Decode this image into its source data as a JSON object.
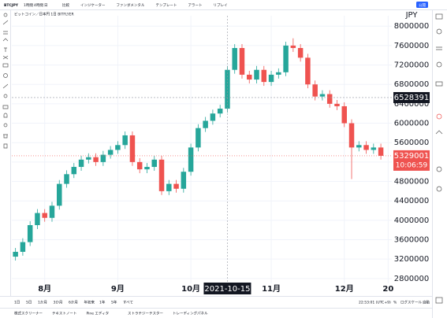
{
  "toolbar": {
    "symbol": "BTCJPY",
    "intervals": [
      "1時間",
      "4時間",
      "日"
    ],
    "items": [
      "比較",
      "インジケーター",
      "ファンダメンタル",
      "テンプレート",
      "アラート",
      "リプレイ"
    ],
    "publish": "公開"
  },
  "chart_data": {
    "type": "candlestick",
    "title": "ビットコイン／日本円 1日 BITFLYER",
    "currency": "JPY",
    "categories": [
      null,
      null,
      null,
      null,
      "8月",
      null,
      null,
      null,
      null,
      null,
      null,
      null,
      null,
      null,
      "9月",
      null,
      null,
      null,
      null,
      null,
      null,
      null,
      null,
      null,
      "10月",
      null,
      null,
      null,
      null,
      null,
      null,
      null,
      null,
      null,
      null,
      "11月",
      null,
      null,
      null,
      null,
      null,
      null,
      null,
      null,
      null,
      "12月",
      null,
      null,
      null,
      null,
      null,
      "20"
    ],
    "open": [
      3250000,
      3350000,
      3550000,
      3900000,
      4150000,
      4050000,
      4300000,
      4750000,
      4950000,
      5100000,
      5250000,
      5300000,
      5200000,
      5350000,
      5450000,
      5550000,
      5750000,
      5200000,
      5050000,
      5100000,
      5250000,
      4600000,
      4750000,
      4650000,
      5000000,
      5500000,
      5900000,
      6050000,
      6200000,
      6300000,
      7100000,
      7550000,
      7000000,
      6900000,
      7100000,
      6850000,
      7000000,
      7050000,
      7600000,
      7550000,
      7350000,
      6800000,
      6550000,
      6600000,
      6400000,
      6350000,
      6000000,
      5500000,
      5550000,
      5450000,
      5500000,
      null
    ],
    "high": [
      3430000,
      3630000,
      3980000,
      4230000,
      4230000,
      4380000,
      4830000,
      5030000,
      5180000,
      5330000,
      5380000,
      5380000,
      5430000,
      5530000,
      5630000,
      5830000,
      5830000,
      5280000,
      5180000,
      5330000,
      5330000,
      4830000,
      4830000,
      5080000,
      5580000,
      5980000,
      6130000,
      6280000,
      6380000,
      7180000,
      7630000,
      7630000,
      7080000,
      7180000,
      7180000,
      7080000,
      7130000,
      7680000,
      7750000,
      7630000,
      7430000,
      6880000,
      6680000,
      6680000,
      6480000,
      6430000,
      6080000,
      5630000,
      5630000,
      5580000,
      5580000,
      null
    ],
    "low": [
      3170000,
      3270000,
      3470000,
      3820000,
      3970000,
      3970000,
      4220000,
      4670000,
      4870000,
      5020000,
      5170000,
      5120000,
      5120000,
      5270000,
      5370000,
      5470000,
      5120000,
      4970000,
      4970000,
      5020000,
      4520000,
      4520000,
      4570000,
      4570000,
      4920000,
      5420000,
      5820000,
      5970000,
      6120000,
      6220000,
      7020000,
      6920000,
      6820000,
      6820000,
      6770000,
      6770000,
      6920000,
      6970000,
      7470000,
      7270000,
      6720000,
      6470000,
      6470000,
      6320000,
      6270000,
      5920000,
      4850000,
      5420000,
      5370000,
      5370000,
      5250000,
      null
    ],
    "close": [
      3350000,
      3550000,
      3900000,
      4150000,
      4050000,
      4300000,
      4750000,
      4950000,
      5100000,
      5250000,
      5300000,
      5200000,
      5350000,
      5450000,
      5550000,
      5750000,
      5200000,
      5050000,
      5100000,
      5250000,
      4600000,
      4750000,
      4650000,
      5000000,
      5500000,
      5900000,
      6050000,
      6200000,
      6300000,
      7100000,
      7550000,
      7000000,
      6900000,
      7100000,
      6850000,
      7000000,
      7050000,
      7600000,
      7550000,
      7350000,
      6800000,
      6550000,
      6600000,
      6400000,
      6350000,
      6000000,
      5500000,
      5550000,
      5450000,
      5500000,
      5329001,
      null
    ],
    "up_color": "#26a69a",
    "down_color": "#ef5350",
    "ylim": [
      2700000,
      8150000
    ],
    "yticks": [
      2800000,
      3200000,
      3600000,
      4000000,
      4400000,
      4800000,
      5200000,
      5600000,
      6000000,
      6400000,
      6800000,
      7200000,
      7600000,
      8000000
    ],
    "grid": true,
    "crosshair": {
      "date": "2021-10-15",
      "price": 6528391
    },
    "last_price": 5329001,
    "countdown": "10:06:59"
  },
  "bottom_bar": {
    "ranges": [
      "1日",
      "5日",
      "1か月",
      "3か月",
      "6か月",
      "年初来",
      "1年",
      "5年",
      "すべて"
    ],
    "clock": "22:53:01 (UTC+9)",
    "percent": "%",
    "log": "ログスケール",
    "auto": "自動"
  },
  "tabs": [
    "株式スクリーナー",
    "テキストノート",
    "Pine エディタ",
    "ストラテジーテスター",
    "トレーディングパネル"
  ]
}
